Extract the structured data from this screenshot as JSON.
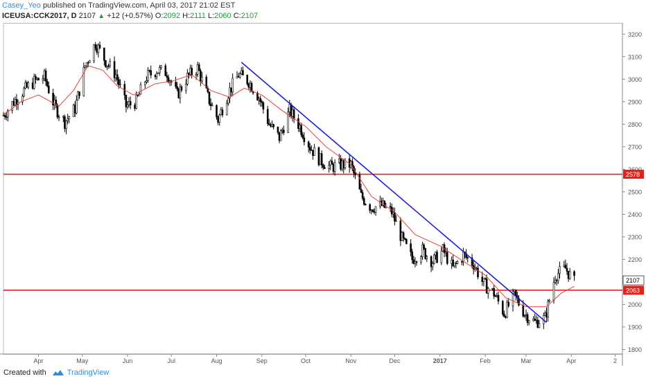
{
  "header": {
    "author": "Casey_Yeo",
    "published_text": "published on TradingView.com, April 03, 2017 21:02 EST",
    "symbol": "ICEUSA:CCK2017, D",
    "last": "2107",
    "change": "+12 (+0.57%)",
    "o_label": "O:",
    "o_value": "2092",
    "h_label": "H:",
    "h_value": "2111",
    "l_label": "L:",
    "l_value": "2060",
    "c_label": "C:",
    "c_value": "2107"
  },
  "footer": {
    "created_with": "Created with",
    "brand": "TradingView"
  },
  "colors": {
    "candle": "#000000",
    "moving_average": "#e8403a",
    "trendline": "#1a1fd6",
    "horizontal_level": "#e8201a",
    "last_price_badge": "#ffffff",
    "level_badge": "#e8201a"
  },
  "chart_data": {
    "type": "candlestick",
    "title": "",
    "ylim": [
      1780,
      3250
    ],
    "y_ticks": [
      1800,
      1900,
      2000,
      2100,
      2200,
      2300,
      2400,
      2500,
      2600,
      2700,
      2800,
      2900,
      3000,
      3100,
      3200
    ],
    "x_tick_labels": [
      "Apr",
      "May",
      "Jun",
      "Jul",
      "Aug",
      "Sep",
      "Oct",
      "Nov",
      "Dec",
      "2017",
      "Feb",
      "Mar",
      "Apr",
      "2"
    ],
    "x_tick_dates": [
      "2016-04-01",
      "2016-05-01",
      "2016-06-01",
      "2016-07-01",
      "2016-08-01",
      "2016-09-01",
      "2016-10-01",
      "2016-11-01",
      "2016-12-01",
      "2017-01-01",
      "2017-02-01",
      "2017-03-01",
      "2017-04-01",
      "2017-05-01"
    ],
    "x_range": [
      "2016-03-08",
      "2017-05-06"
    ],
    "bold_tick": "2017",
    "horizontal_levels": [
      {
        "value": 2578,
        "label": "2578"
      },
      {
        "value": 2063,
        "label": "2063"
      }
    ],
    "last_price": {
      "value": 2107,
      "label": "2107"
    },
    "trendline": {
      "start": {
        "date": "2016-08-18",
        "value": 3075
      },
      "end": {
        "date": "2017-03-15",
        "value": 1920
      }
    },
    "moving_average": {
      "name": "",
      "points": [
        [
          "2016-03-08",
          2840
        ],
        [
          "2016-03-20",
          2900
        ],
        [
          "2016-04-01",
          2930
        ],
        [
          "2016-04-15",
          2880
        ],
        [
          "2016-04-25",
          2950
        ],
        [
          "2016-05-05",
          3060
        ],
        [
          "2016-05-15",
          3040
        ],
        [
          "2016-05-25",
          2970
        ],
        [
          "2016-06-05",
          2930
        ],
        [
          "2016-06-20",
          2980
        ],
        [
          "2016-07-01",
          2990
        ],
        [
          "2016-07-15",
          3020
        ],
        [
          "2016-07-28",
          2950
        ],
        [
          "2016-08-10",
          2920
        ],
        [
          "2016-08-20",
          2960
        ],
        [
          "2016-09-01",
          2930
        ],
        [
          "2016-09-15",
          2860
        ],
        [
          "2016-10-01",
          2790
        ],
        [
          "2016-10-15",
          2700
        ],
        [
          "2016-11-01",
          2620
        ],
        [
          "2016-11-15",
          2480
        ],
        [
          "2016-12-01",
          2410
        ],
        [
          "2016-12-15",
          2310
        ],
        [
          "2017-01-01",
          2260
        ],
        [
          "2017-01-15",
          2200
        ],
        [
          "2017-02-01",
          2130
        ],
        [
          "2017-02-15",
          2030
        ],
        [
          "2017-03-01",
          1990
        ],
        [
          "2017-03-15",
          1990
        ],
        [
          "2017-03-25",
          2050
        ],
        [
          "2017-04-03",
          2080
        ]
      ]
    },
    "candles": [
      [
        "2016-03-08",
        2840
      ],
      [
        "2016-03-15",
        2900
      ],
      [
        "2016-03-22",
        2950
      ],
      [
        "2016-03-29",
        2990
      ],
      [
        "2016-04-05",
        3010
      ],
      [
        "2016-04-12",
        2880
      ],
      [
        "2016-04-19",
        2810
      ],
      [
        "2016-04-26",
        2870
      ],
      [
        "2016-05-03",
        3060
      ],
      [
        "2016-05-10",
        3160
      ],
      [
        "2016-05-17",
        3080
      ],
      [
        "2016-05-24",
        3020
      ],
      [
        "2016-05-31",
        2880
      ],
      [
        "2016-06-07",
        2900
      ],
      [
        "2016-06-14",
        3010
      ],
      [
        "2016-06-21",
        3040
      ],
      [
        "2016-06-28",
        3030
      ],
      [
        "2016-07-05",
        2930
      ],
      [
        "2016-07-12",
        3010
      ],
      [
        "2016-07-19",
        3050
      ],
      [
        "2016-07-26",
        2920
      ],
      [
        "2016-08-02",
        2820
      ],
      [
        "2016-08-09",
        2940
      ],
      [
        "2016-08-16",
        3020
      ],
      [
        "2016-08-23",
        2990
      ],
      [
        "2016-08-30",
        2920
      ],
      [
        "2016-09-06",
        2800
      ],
      [
        "2016-09-13",
        2740
      ],
      [
        "2016-09-20",
        2860
      ],
      [
        "2016-09-27",
        2790
      ],
      [
        "2016-10-04",
        2700
      ],
      [
        "2016-10-11",
        2640
      ],
      [
        "2016-10-18",
        2610
      ],
      [
        "2016-10-25",
        2620
      ],
      [
        "2016-11-01",
        2620
      ],
      [
        "2016-11-08",
        2480
      ],
      [
        "2016-11-15",
        2430
      ],
      [
        "2016-11-22",
        2440
      ],
      [
        "2016-11-29",
        2410
      ],
      [
        "2016-12-06",
        2290
      ],
      [
        "2016-12-13",
        2200
      ],
      [
        "2016-12-20",
        2240
      ],
      [
        "2016-12-27",
        2190
      ],
      [
        "2017-01-03",
        2240
      ],
      [
        "2017-01-10",
        2160
      ],
      [
        "2017-01-17",
        2220
      ],
      [
        "2017-01-24",
        2180
      ],
      [
        "2017-01-31",
        2090
      ],
      [
        "2017-02-07",
        2050
      ],
      [
        "2017-02-14",
        1960
      ],
      [
        "2017-02-21",
        2040
      ],
      [
        "2017-02-28",
        1960
      ],
      [
        "2017-03-07",
        1920
      ],
      [
        "2017-03-14",
        1940
      ],
      [
        "2017-03-21",
        2130
      ],
      [
        "2017-03-28",
        2160
      ],
      [
        "2017-04-03",
        2100
      ]
    ]
  }
}
